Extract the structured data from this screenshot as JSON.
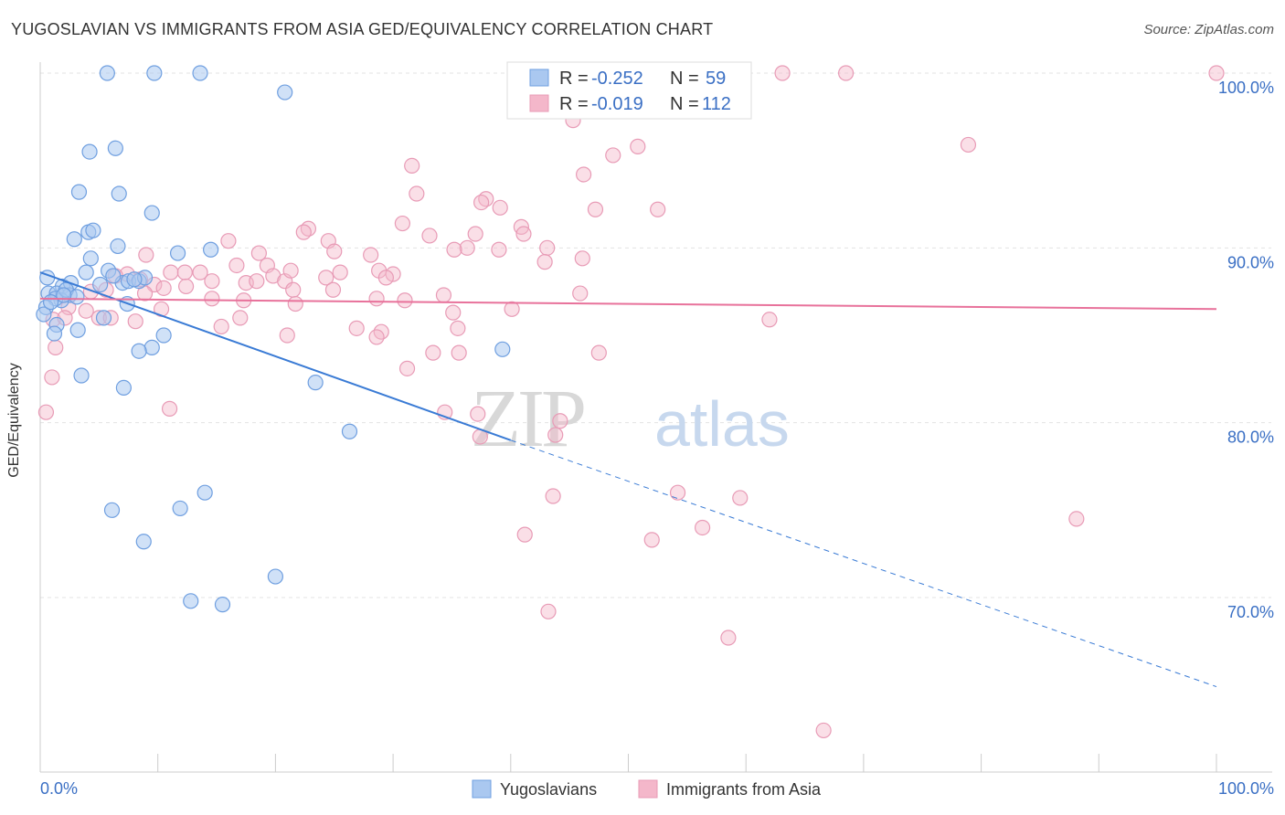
{
  "title": "YUGOSLAVIAN VS IMMIGRANTS FROM ASIA GED/EQUIVALENCY CORRELATION CHART",
  "source": "Source: ZipAtlas.com",
  "watermark": {
    "zip": "ZIP",
    "atlas": "atlas"
  },
  "colors": {
    "blue": "#3a7bd5",
    "blue_fill": "#aac8f0",
    "pink": "#e8729b",
    "pink_fill": "#f4b7ca",
    "axis_text": "#3a6fc4"
  },
  "stats": {
    "blue": {
      "r_label": "R =",
      "r_value": "-0.252",
      "n_label": "N =",
      "n_value": "59"
    },
    "pink": {
      "r_label": "R =",
      "r_value": "-0.019",
      "n_label": "N =",
      "n_value": "112"
    }
  },
  "legend": {
    "blue": "Yugoslavians",
    "pink": "Immigrants from Asia"
  },
  "chart_data": {
    "type": "scatter",
    "title": "YUGOSLAVIAN VS IMMIGRANTS FROM ASIA GED/EQUIVALENCY CORRELATION CHART",
    "xlabel": "",
    "ylabel": "GED/Equivalency",
    "xlim": [
      0,
      100
    ],
    "ylim": [
      60,
      101.5
    ],
    "x_tick_labels": [
      "0.0%",
      "100.0%"
    ],
    "y_ticks": [
      70,
      80,
      90,
      100
    ],
    "y_tick_labels": [
      "70.0%",
      "80.0%",
      "90.0%",
      "100.0%"
    ],
    "grid": "horizontal dashed",
    "legend_position": "bottom",
    "series": [
      {
        "name": "Yugoslavians",
        "color": "#3a7bd5",
        "trend": {
          "x": [
            0,
            40
          ],
          "y": [
            88.6,
            79.0
          ],
          "dashed_x": [
            40,
            100
          ],
          "dashed_y": [
            79.0,
            64.9
          ]
        },
        "points": [
          [
            5.7,
            100
          ],
          [
            9.7,
            100
          ],
          [
            13.6,
            100
          ],
          [
            20.8,
            98.9
          ],
          [
            4.2,
            95.5
          ],
          [
            6.4,
            95.7
          ],
          [
            3.3,
            93.2
          ],
          [
            6.7,
            93.1
          ],
          [
            9.5,
            92
          ],
          [
            2.9,
            90.5
          ],
          [
            4.1,
            90.9
          ],
          [
            4.5,
            91
          ],
          [
            6.6,
            90.1
          ],
          [
            11.7,
            89.7
          ],
          [
            14.5,
            89.9
          ],
          [
            4.3,
            89.4
          ],
          [
            3.9,
            88.6
          ],
          [
            5.8,
            88.7
          ],
          [
            7,
            88
          ],
          [
            7.5,
            88.1
          ],
          [
            8.4,
            88.1
          ],
          [
            8.9,
            88.3
          ],
          [
            0.6,
            88.3
          ],
          [
            1.9,
            87.8
          ],
          [
            2.6,
            88
          ],
          [
            0.7,
            87.4
          ],
          [
            1.4,
            87.4
          ],
          [
            2.5,
            87.3
          ],
          [
            1.8,
            87
          ],
          [
            1.3,
            87.1
          ],
          [
            7.4,
            86.8
          ],
          [
            0.5,
            86.6
          ],
          [
            5.4,
            86
          ],
          [
            1.4,
            85.6
          ],
          [
            3.2,
            85.3
          ],
          [
            1.2,
            85.1
          ],
          [
            10.5,
            85
          ],
          [
            9.5,
            84.3
          ],
          [
            8.4,
            84.1
          ],
          [
            39.3,
            84.2
          ],
          [
            3.5,
            82.7
          ],
          [
            7.1,
            82
          ],
          [
            23.4,
            82.3
          ],
          [
            26.3,
            79.5
          ],
          [
            14,
            76
          ],
          [
            11.9,
            75.1
          ],
          [
            6.1,
            75
          ],
          [
            8.8,
            73.2
          ],
          [
            20,
            71.2
          ],
          [
            12.8,
            69.8
          ],
          [
            15.5,
            69.6
          ],
          [
            0.3,
            86.2
          ],
          [
            2.2,
            87.6
          ],
          [
            3.1,
            87.2
          ],
          [
            5.1,
            87.9
          ],
          [
            8.0,
            88.2
          ],
          [
            6.2,
            88.4
          ],
          [
            0.9,
            86.9
          ],
          [
            2.0,
            87.3
          ]
        ]
      },
      {
        "name": "Immigrants from Asia",
        "color": "#e8729b",
        "trend": {
          "x": [
            0,
            100
          ],
          "y": [
            87.1,
            86.5
          ]
        },
        "points": [
          [
            50.6,
            100
          ],
          [
            63.1,
            100
          ],
          [
            68.5,
            100
          ],
          [
            100,
            100
          ],
          [
            45.4,
            98.8
          ],
          [
            52.6,
            98.8
          ],
          [
            45.3,
            97.3
          ],
          [
            50.8,
            95.8
          ],
          [
            48.7,
            95.3
          ],
          [
            78.9,
            95.9
          ],
          [
            31.6,
            94.7
          ],
          [
            46.2,
            94.2
          ],
          [
            32,
            93.1
          ],
          [
            37.9,
            92.8
          ],
          [
            37.5,
            92.6
          ],
          [
            39.1,
            92.3
          ],
          [
            47.2,
            92.2
          ],
          [
            52.5,
            92.2
          ],
          [
            37,
            90.8
          ],
          [
            40.9,
            91.2
          ],
          [
            30.8,
            91.4
          ],
          [
            22.8,
            91.1
          ],
          [
            22.4,
            90.9
          ],
          [
            41.1,
            90.8
          ],
          [
            33.1,
            90.7
          ],
          [
            16,
            90.4
          ],
          [
            24.5,
            90.4
          ],
          [
            36.3,
            90
          ],
          [
            43.1,
            90
          ],
          [
            35.2,
            89.9
          ],
          [
            39,
            89.9
          ],
          [
            25,
            89.8
          ],
          [
            18.6,
            89.7
          ],
          [
            28.1,
            89.6
          ],
          [
            46.1,
            89.4
          ],
          [
            42.9,
            89.2
          ],
          [
            16.7,
            89
          ],
          [
            9,
            89.6
          ],
          [
            19.3,
            89
          ],
          [
            28.8,
            88.7
          ],
          [
            25.5,
            88.6
          ],
          [
            30,
            88.5
          ],
          [
            24.3,
            88.3
          ],
          [
            29.4,
            88.3
          ],
          [
            19.8,
            88.4
          ],
          [
            20.8,
            88.1
          ],
          [
            11.1,
            88.6
          ],
          [
            12.3,
            88.6
          ],
          [
            13.6,
            88.6
          ],
          [
            7.4,
            88.5
          ],
          [
            6.4,
            88.4
          ],
          [
            8.5,
            88.2
          ],
          [
            14.6,
            88.1
          ],
          [
            17.5,
            88
          ],
          [
            18.4,
            88.1
          ],
          [
            9.7,
            87.9
          ],
          [
            12.4,
            87.8
          ],
          [
            10.5,
            87.7
          ],
          [
            24.9,
            87.6
          ],
          [
            21.5,
            87.6
          ],
          [
            5.6,
            87.6
          ],
          [
            4.3,
            87.5
          ],
          [
            8.9,
            87.4
          ],
          [
            28.6,
            87.1
          ],
          [
            31,
            87
          ],
          [
            14.6,
            87.1
          ],
          [
            34.3,
            87.3
          ],
          [
            45.9,
            87.4
          ],
          [
            17.3,
            87
          ],
          [
            21.7,
            86.8
          ],
          [
            2.4,
            86.6
          ],
          [
            3.9,
            86.4
          ],
          [
            10.3,
            86.5
          ],
          [
            40.1,
            86.5
          ],
          [
            5,
            86
          ],
          [
            6,
            86
          ],
          [
            1.1,
            85.9
          ],
          [
            2.1,
            86
          ],
          [
            8.1,
            85.8
          ],
          [
            17,
            86
          ],
          [
            62,
            85.9
          ],
          [
            15.4,
            85.5
          ],
          [
            26.9,
            85.4
          ],
          [
            35.5,
            85.4
          ],
          [
            29,
            85.2
          ],
          [
            21,
            85
          ],
          [
            28.6,
            84.9
          ],
          [
            1.3,
            84.3
          ],
          [
            33.4,
            84
          ],
          [
            35.6,
            84
          ],
          [
            47.5,
            84
          ],
          [
            1,
            82.6
          ],
          [
            31.2,
            83.1
          ],
          [
            11,
            80.8
          ],
          [
            0.5,
            80.6
          ],
          [
            34.4,
            80.6
          ],
          [
            37.2,
            80.5
          ],
          [
            44.2,
            80.1
          ],
          [
            37.4,
            79.2
          ],
          [
            43.8,
            79.3
          ],
          [
            54.2,
            76
          ],
          [
            43.6,
            75.8
          ],
          [
            59.5,
            75.7
          ],
          [
            88.1,
            74.5
          ],
          [
            56.3,
            74
          ],
          [
            41.2,
            73.6
          ],
          [
            52,
            73.3
          ],
          [
            43.2,
            69.2
          ],
          [
            58.5,
            67.7
          ],
          [
            66.6,
            62.4
          ],
          [
            35.1,
            86.3
          ],
          [
            21.3,
            88.7
          ]
        ]
      }
    ]
  }
}
